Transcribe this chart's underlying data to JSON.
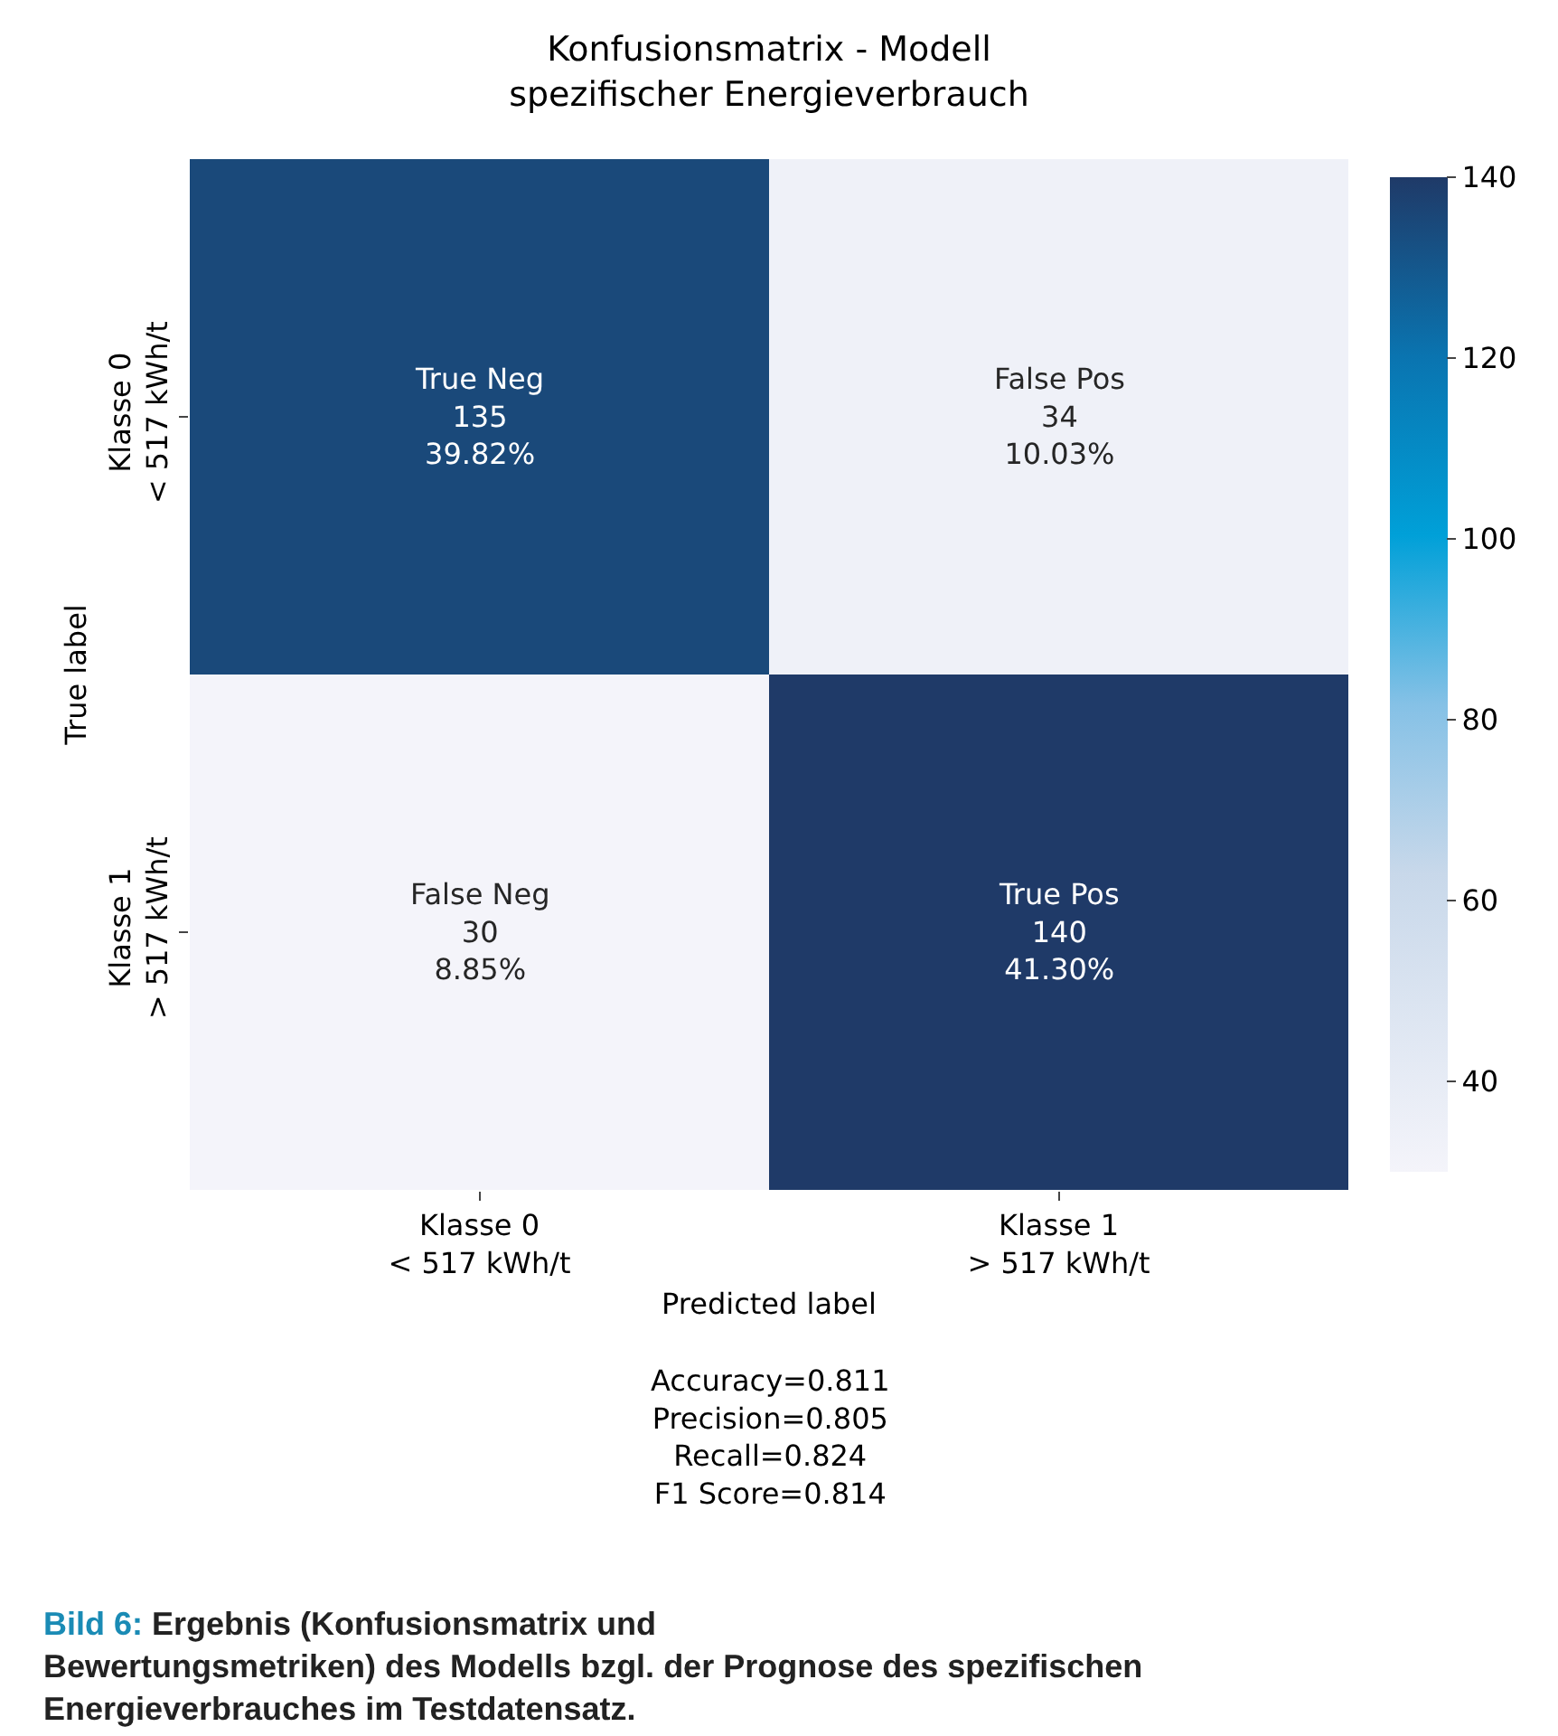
{
  "chart_data": {
    "type": "heatmap",
    "title": "Konfusionsmatrix - Modell\nspezifischer Energieverbrauch",
    "xlabel": "Predicted label",
    "ylabel": "True label",
    "categories": [
      "Klasse 0\n< 517 kWh/t",
      "Klasse 1\n> 517 kWh/t"
    ],
    "y_categories": [
      "Klasse 0\n< 517 kWh/t",
      "Klasse 1\n> 517 kWh/t"
    ],
    "cells": [
      [
        135,
        34
      ],
      [
        30,
        140
      ]
    ],
    "cell_labels": [
      [
        "True Neg\n135\n39.82%",
        "False Pos\n34\n10.03%"
      ],
      [
        "False Neg\n30\n8.85%",
        "True Pos\n140\n41.30%"
      ]
    ],
    "clim": [
      30,
      140
    ],
    "cticks": [
      40,
      60,
      80,
      100,
      120,
      140
    ],
    "annotations": [
      "Accuracy=0.811\nPrecision=0.805\nRecall=0.824\nF1 Score=0.814",
      "Bild 6: Ergebnis (Konfusionsmatrix und Bewertungsmetriken) des Modells bzgl. der Prognose des spezifischen Energieverbrauches im Testdatensatz."
    ]
  }
}
